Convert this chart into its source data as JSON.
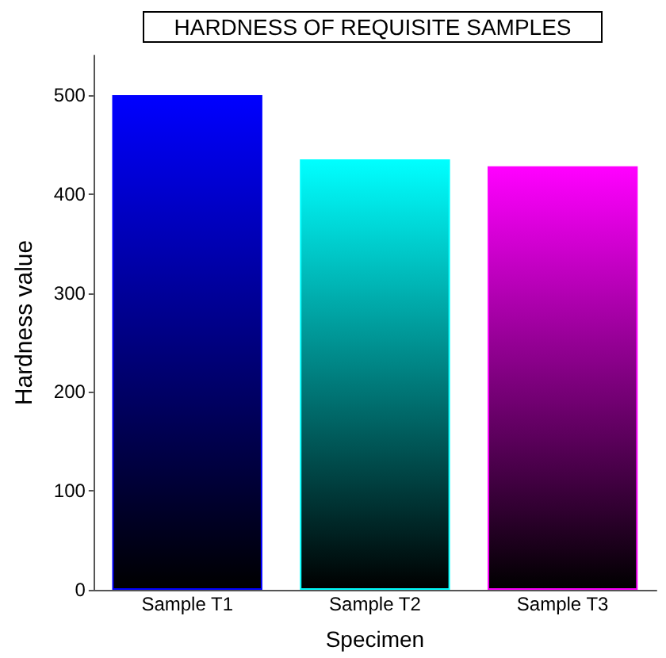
{
  "chart_data": {
    "type": "bar",
    "title": "HARDNESS OF REQUISITE SAMPLES",
    "xlabel": "Specimen",
    "ylabel": "Hardness value",
    "categories": [
      "Sample T1",
      "Sample T2",
      "Sample T3"
    ],
    "values": [
      500,
      435,
      428
    ],
    "colors": [
      "#0000ff",
      "#00ffff",
      "#ff00ff"
    ],
    "ylim": [
      0,
      540
    ],
    "yticks": [
      0,
      100,
      200,
      300,
      400,
      500
    ],
    "grid": false
  }
}
